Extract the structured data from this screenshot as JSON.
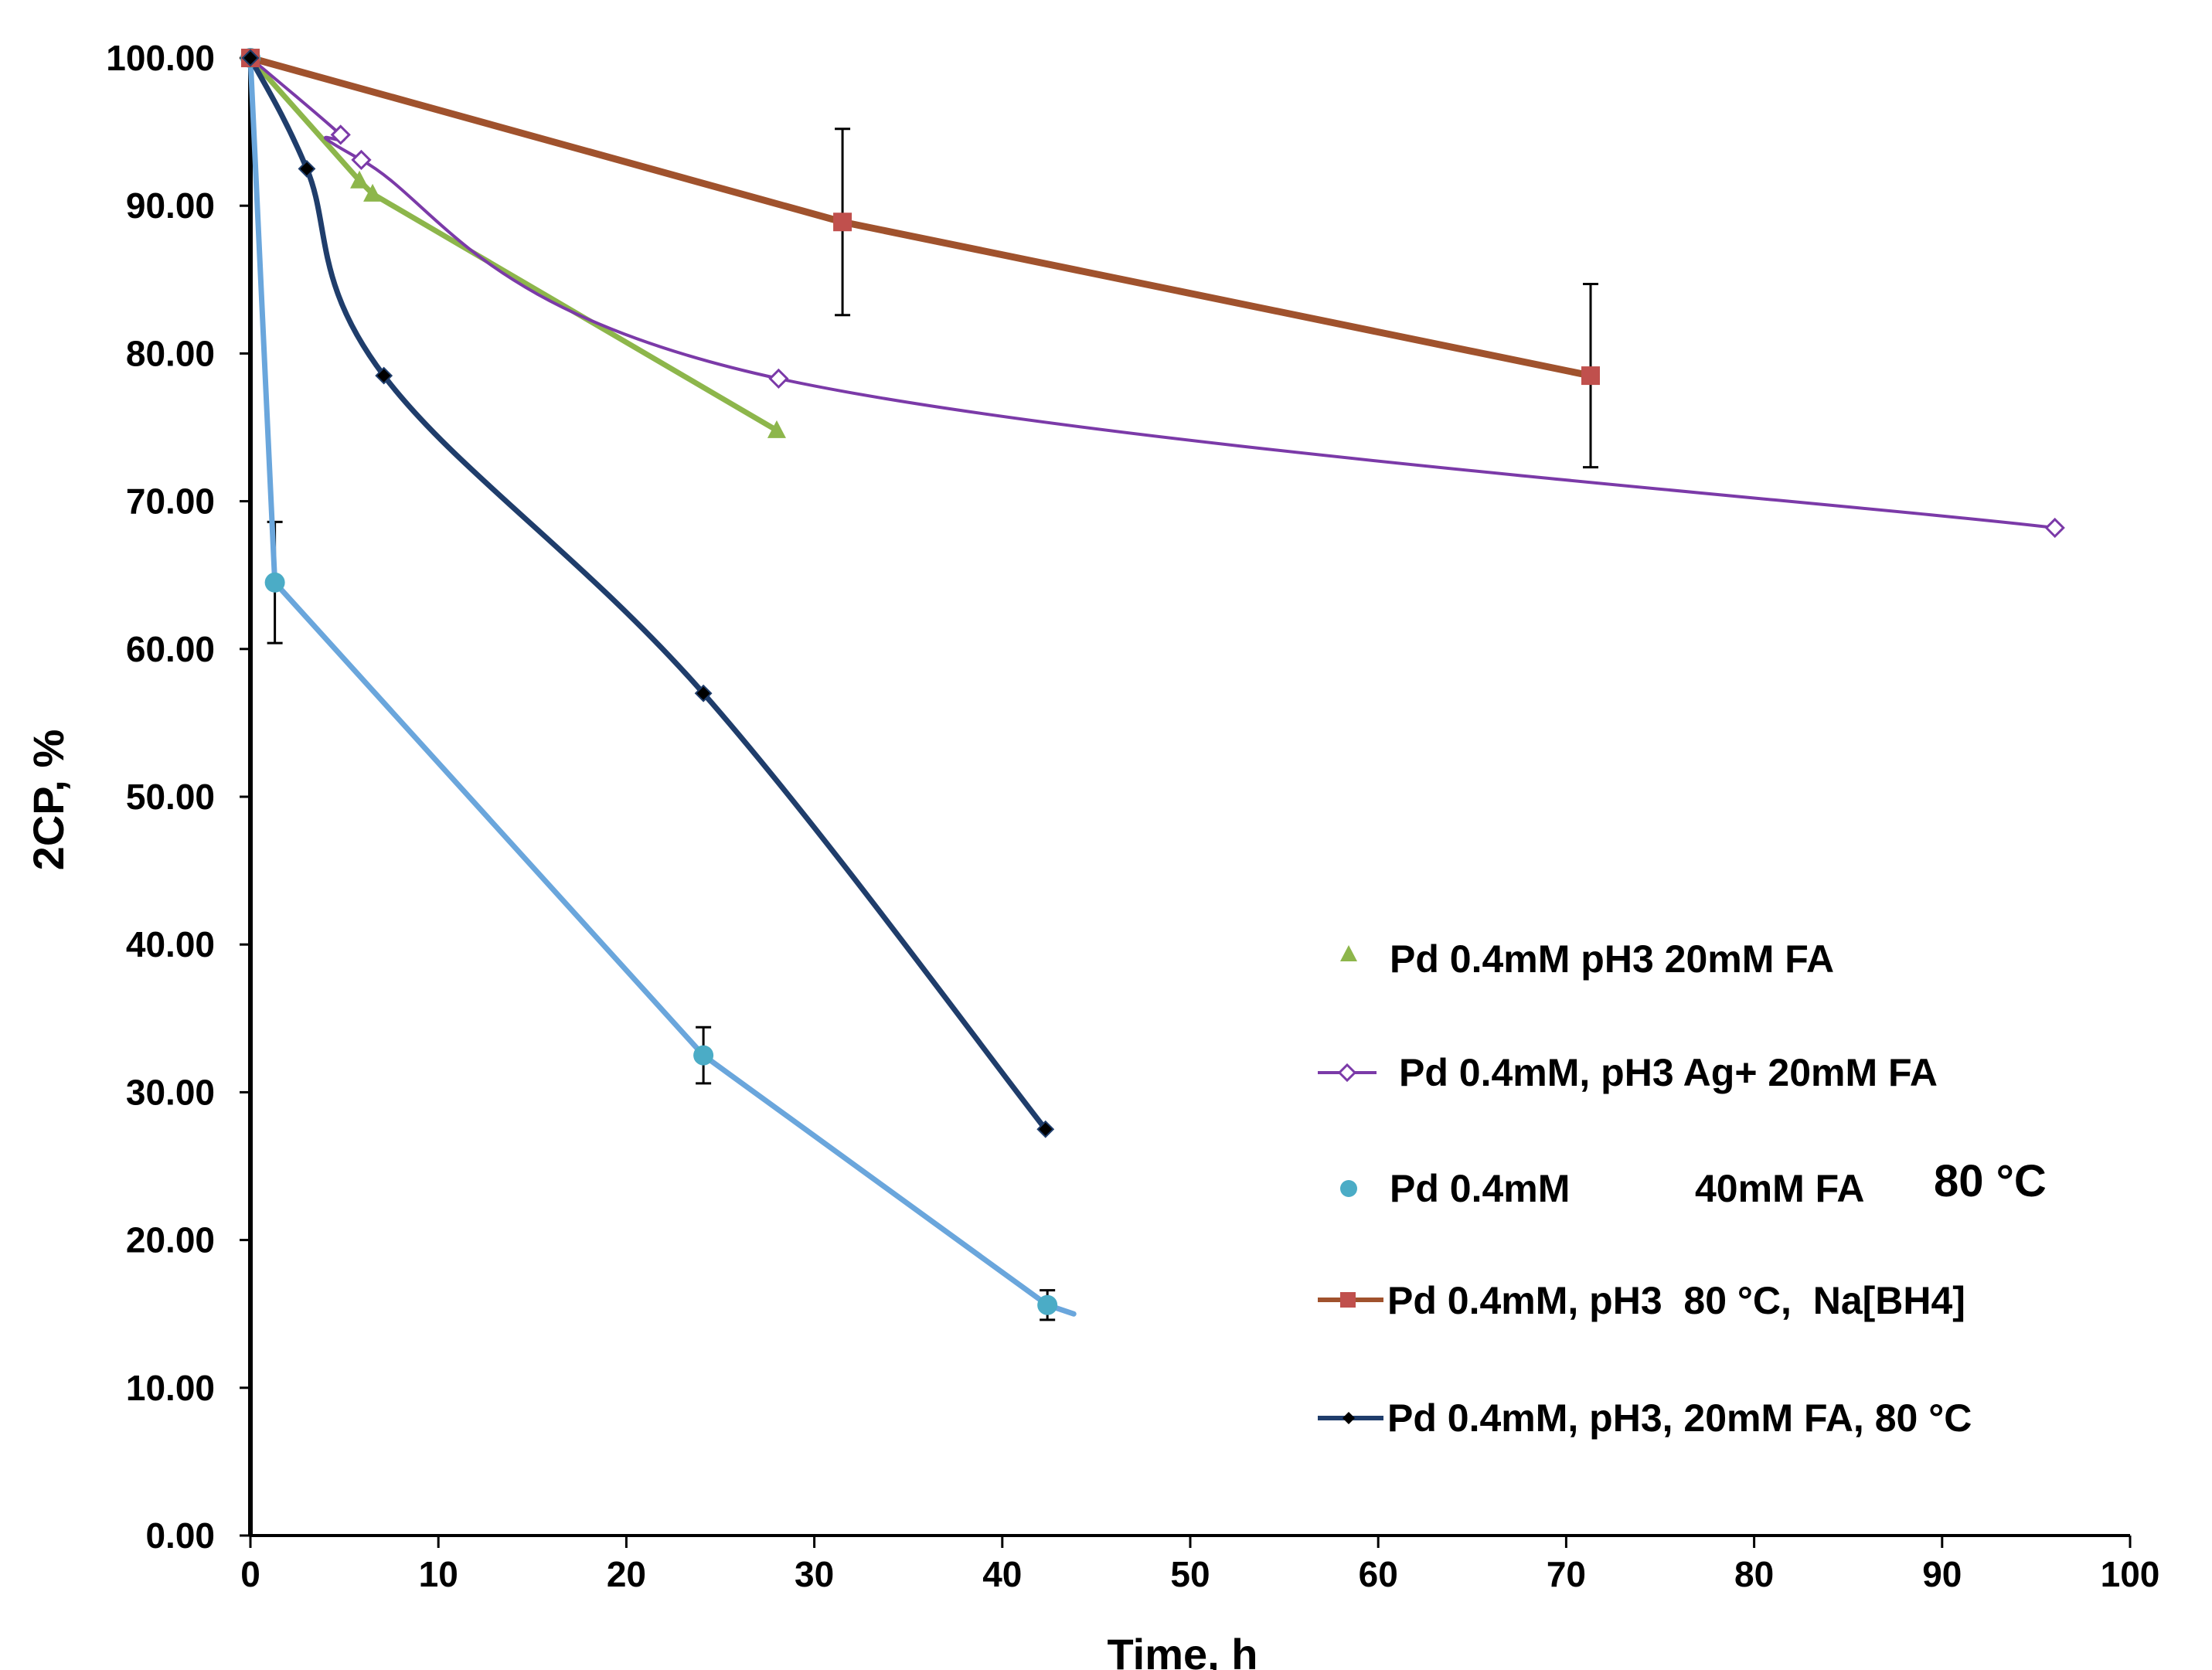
{
  "chart_data": {
    "type": "line",
    "title": "",
    "xlabel": "Time, h",
    "ylabel": "2CP, %",
    "xlim": [
      0,
      100
    ],
    "ylim": [
      0,
      100
    ],
    "x_ticks": [
      0,
      10,
      20,
      30,
      40,
      50,
      60,
      70,
      80,
      90,
      100
    ],
    "x_tick_labels": [
      "0",
      "10",
      "20",
      "30",
      "40",
      "50",
      "60",
      "70",
      "80",
      "90",
      "100"
    ],
    "y_ticks": [
      0,
      10,
      20,
      30,
      40,
      50,
      60,
      70,
      80,
      90,
      100
    ],
    "y_tick_labels": [
      "0.00",
      "10.00",
      "20.00",
      "30.00",
      "40.00",
      "50.00",
      "60.00",
      "70.00",
      "80.00",
      "90.00",
      "100.00"
    ],
    "grid": false,
    "legend_position": "center-right",
    "series": [
      {
        "name": "Pd 0.4mM pH3 20mM FA",
        "color": "#8DB64B",
        "marker": "triangle",
        "x": [
          0,
          5.8,
          6.5,
          28
        ],
        "y": [
          100,
          91.7,
          90.8,
          74.8
        ]
      },
      {
        "name": "Pd 0.4mM, pH3 Ag+ 20mM FA",
        "color": "#7B3AA8",
        "marker": "diamond-open",
        "x": [
          0,
          4.8,
          5.9,
          28.1,
          96
        ],
        "y": [
          100,
          94.8,
          93.1,
          78.3,
          68.2
        ]
      },
      {
        "name": "Pd 0.4mM",
        "name_suffix": "40mM FA",
        "color": "#6AA6DC",
        "marker_color": "#4BACC6",
        "marker": "circle",
        "x": [
          0,
          1.3,
          24.1,
          42.4,
          43.8
        ],
        "y": [
          100,
          64.5,
          32.5,
          15.6,
          15.0
        ],
        "error": [
          0,
          4.1,
          1.9,
          1.0,
          0
        ]
      },
      {
        "name": "Pd 0.4mM, pH3  80 °C,  Na[BH4]",
        "color": "#A0522D",
        "marker_color": "#C0504D",
        "marker": "square",
        "x": [
          0,
          31.5,
          71.3
        ],
        "y": [
          100,
          88.9,
          78.5
        ],
        "error": [
          0,
          6.3,
          6.2
        ]
      },
      {
        "name": "Pd 0.4mM, pH3, 20mM FA, 80 °C",
        "color": "#1F3D6B",
        "marker": "diamond",
        "x": [
          0,
          3.0,
          7.1,
          24.1,
          42.3
        ],
        "y": [
          100,
          92.5,
          78.5,
          57.0,
          27.5
        ]
      }
    ],
    "annotations": [
      "80 °C"
    ]
  }
}
